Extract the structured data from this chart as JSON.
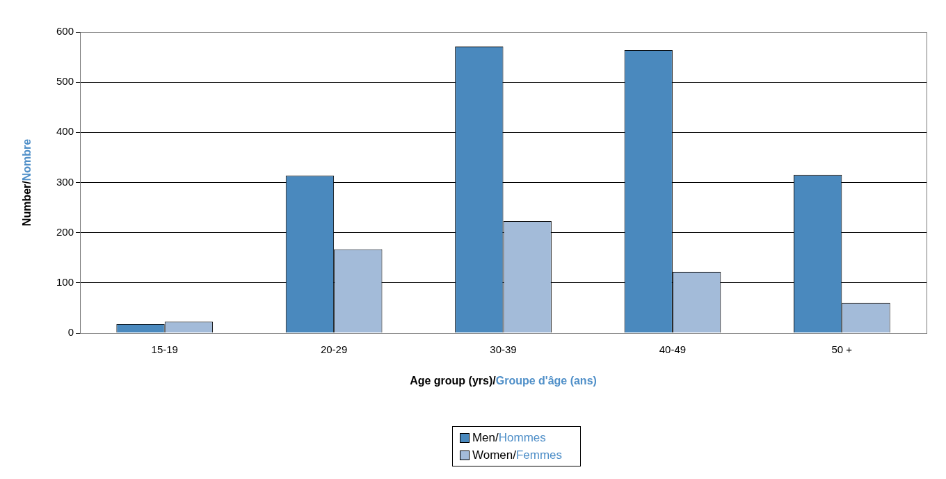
{
  "chart_data": {
    "type": "bar",
    "xlabel": "Age group (yrs)/Groupe d'âge (ans)",
    "ylabel": "Number/Nombre",
    "categories": [
      "15-19",
      "20-29",
      "30-39",
      "40-49",
      "50 +"
    ],
    "series": [
      {
        "name": "Men/Hommes",
        "color": "#4a89be",
        "values": [
          18,
          314,
          571,
          564,
          315
        ]
      },
      {
        "name": "Women/Femmes",
        "color": "#a3bbd9",
        "values": [
          23,
          167,
          223,
          122,
          60
        ]
      }
    ],
    "ylim": [
      0,
      600
    ],
    "yticks": [
      0,
      100,
      200,
      300,
      400,
      500,
      600
    ],
    "grid": "y",
    "legend": "bottom"
  }
}
